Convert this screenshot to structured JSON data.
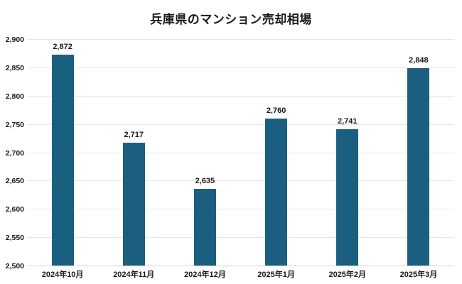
{
  "title": "兵庫県のマンション売却相場",
  "chart_data": {
    "type": "bar",
    "title": "兵庫県のマンション売却相場",
    "categories": [
      "2024年10月",
      "2024年11月",
      "2024年12月",
      "2025年1月",
      "2025年2月",
      "2025年3月"
    ],
    "values": [
      2872,
      2717,
      2635,
      2760,
      2741,
      2848
    ],
    "data_labels": [
      "2,872",
      "2,717",
      "2,635",
      "2,760",
      "2,741",
      "2,848"
    ],
    "xlabel": "",
    "ylabel": "",
    "ylim": [
      2500,
      2900
    ],
    "ytick_step": 50,
    "ytick_labels": [
      "2,500",
      "2,550",
      "2,600",
      "2,650",
      "2,700",
      "2,750",
      "2,800",
      "2,850",
      "2,900"
    ],
    "grid": "horizontal-only",
    "legend_position": "none",
    "bar_color": "#1b5f80"
  },
  "colors": {
    "bar": "#1b5f80",
    "gridline": "#e6e6e6",
    "axis_line": "#d4d4d4",
    "text": "#1a1a1a",
    "background": "#ffffff"
  }
}
